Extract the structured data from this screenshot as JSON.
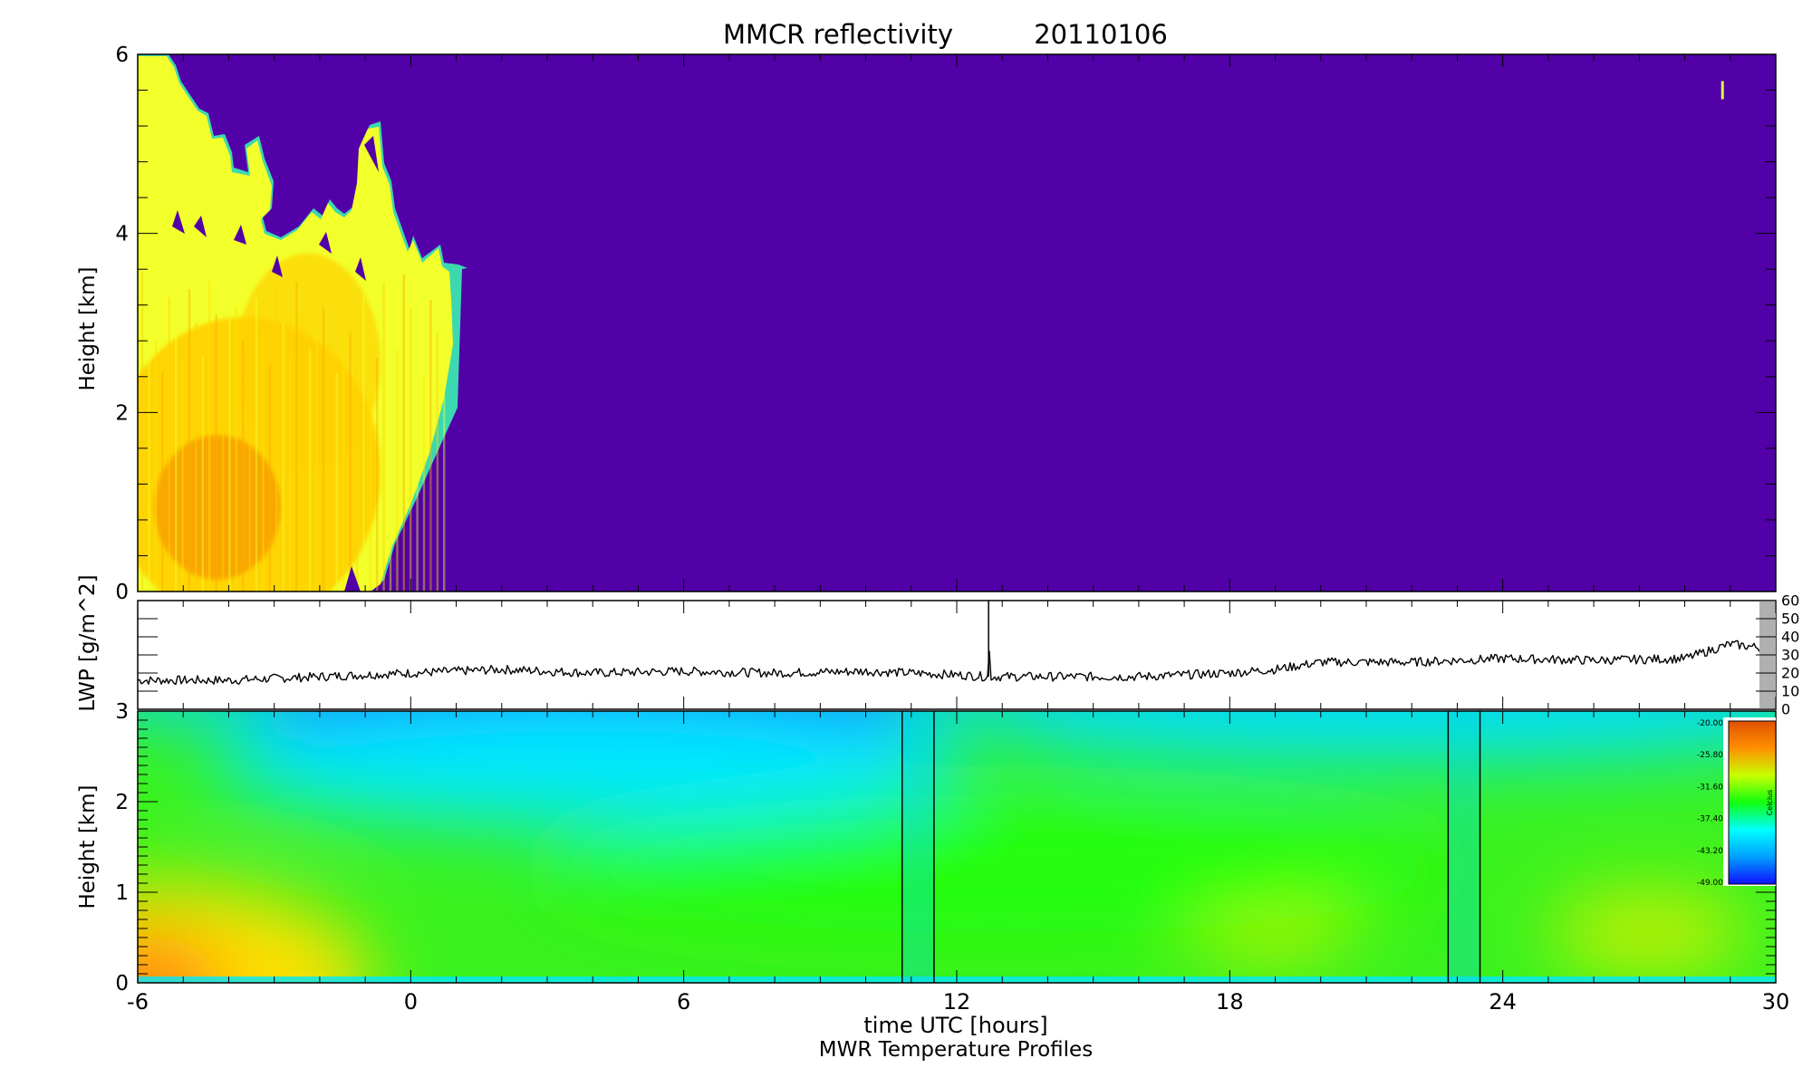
{
  "chart_data": [
    {
      "type": "heatmap",
      "title": "MMCR reflectivity",
      "date": "20110106",
      "ylabel": "Height [km]",
      "xlim": [
        -6,
        30
      ],
      "ylim": [
        0,
        6
      ],
      "yticks": [
        "0",
        "2",
        "4",
        "6"
      ],
      "background_color": "#5200a8",
      "cloud_colors": [
        "#f2ff2a",
        "#ffd200",
        "#f9a000"
      ],
      "cloud_region": {
        "x_range": [
          -6,
          1
        ],
        "height_range": [
          0,
          6
        ],
        "notes": "dense echoes from -6h to about 1h UTC, tops near 3.5-6 km"
      },
      "speck": {
        "x": 28.8,
        "height": 5.6
      }
    },
    {
      "type": "line",
      "ylabel": "LWP [g/m^2]",
      "xlim": [
        -6,
        30
      ],
      "ylim": [
        0,
        60
      ],
      "yticks": [
        "0",
        "10",
        "20",
        "30",
        "40",
        "50",
        "60"
      ],
      "x": [
        -6,
        -4,
        -2,
        0,
        2,
        4,
        6,
        8,
        10,
        12,
        12.7,
        12.71,
        12.72,
        13,
        14,
        16,
        18,
        19,
        20,
        22,
        24,
        26,
        28,
        29,
        30
      ],
      "y": [
        16,
        16,
        18,
        20,
        22,
        20,
        21,
        20,
        21,
        19,
        18,
        60,
        18,
        18,
        18,
        18,
        20,
        22,
        26,
        26,
        28,
        27,
        28,
        36,
        33
      ],
      "color": "#000000",
      "spike": {
        "x": 12.7,
        "y": 60
      }
    },
    {
      "type": "heatmap",
      "ylabel": "Height [km]",
      "xlabel": "time UTC [hours]",
      "subtitle": "MWR Temperature Profiles",
      "xlim": [
        -6,
        30
      ],
      "ylim": [
        0,
        3
      ],
      "xticks": [
        "-6",
        "0",
        "6",
        "12",
        "18",
        "24",
        "30"
      ],
      "yticks": [
        "0",
        "1",
        "2",
        "3"
      ],
      "missing_intervals": [
        [
          10.8,
          11.5
        ],
        [
          22.8,
          23.5
        ]
      ],
      "colorbar": {
        "label": "Celcius",
        "ticks": [
          "-20.00",
          "-25.80",
          "-31.60",
          "-37.40",
          "-43.20",
          "-49.00"
        ],
        "range": [
          -49.0,
          -20.0
        ],
        "colors": [
          "#1010ff",
          "#00a0ff",
          "#00ffff",
          "#10ff10",
          "#c8ff00",
          "#ff9000",
          "#e05000"
        ]
      }
    }
  ]
}
